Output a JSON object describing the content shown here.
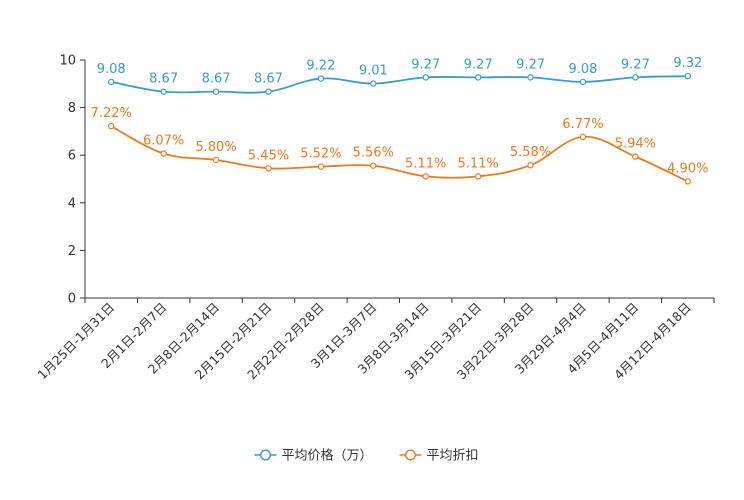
{
  "chart_data": {
    "type": "line",
    "title": "",
    "xlabel": "",
    "ylabel": "",
    "ylim": [
      0,
      10
    ],
    "yticks": [
      0,
      2,
      4,
      6,
      8,
      10
    ],
    "grid": false,
    "legend_position": "bottom",
    "categories": [
      "1月25日-1月31日",
      "2月1日-2月7日",
      "2月8日-2月14日",
      "2月15日-2月21日",
      "2月22日-2月28日",
      "3月1日-3月7日",
      "3月8日-3月14日",
      "3月15日-3月21日",
      "3月22日-3月28日",
      "3月29日-4月4日",
      "4月5日-4月11日",
      "4月12日-4月18日"
    ],
    "series": [
      {
        "name": "平均价格（万）",
        "color": "#3a9ad1",
        "values": [
          9.08,
          8.67,
          8.67,
          8.67,
          9.22,
          9.01,
          9.27,
          9.27,
          9.27,
          9.08,
          9.27,
          9.32
        ],
        "labels": [
          "9.08",
          "8.67",
          "8.67",
          "8.67",
          "9.22",
          "9.01",
          "9.27",
          "9.27",
          "9.27",
          "9.08",
          "9.27",
          "9.32"
        ]
      },
      {
        "name": "平均折扣",
        "color": "#f07820",
        "values": [
          7.22,
          6.07,
          5.8,
          5.45,
          5.52,
          5.56,
          5.11,
          5.11,
          5.58,
          6.77,
          5.94,
          4.9
        ],
        "labels": [
          "7.22%",
          "6.07%",
          "5.80%",
          "5.45%",
          "5.52%",
          "5.56%",
          "5.11%",
          "5.11%",
          "5.58%",
          "6.77%",
          "5.94%",
          "4.90%"
        ]
      }
    ]
  }
}
